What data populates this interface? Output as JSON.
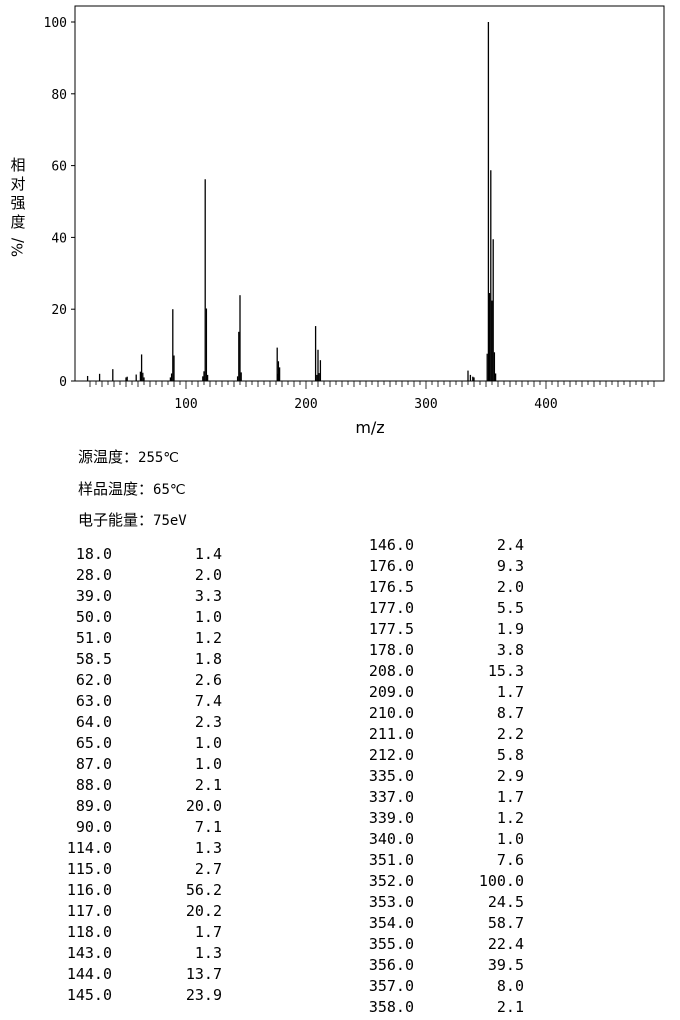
{
  "chart_data": {
    "type": "bar",
    "xlabel": "m/z",
    "ylabel": "相对强度/%",
    "xlim": [
      10,
      495
    ],
    "ylim": [
      0,
      104
    ],
    "x_ticks": [
      100,
      200,
      300,
      400
    ],
    "y_ticks": [
      0,
      20,
      40,
      60,
      80,
      100
    ],
    "peaks": [
      [
        18.0,
        1.4
      ],
      [
        28.0,
        2.0
      ],
      [
        39.0,
        3.3
      ],
      [
        50.0,
        1.0
      ],
      [
        51.0,
        1.2
      ],
      [
        58.5,
        1.8
      ],
      [
        62.0,
        2.6
      ],
      [
        63.0,
        7.4
      ],
      [
        64.0,
        2.3
      ],
      [
        65.0,
        1.0
      ],
      [
        87.0,
        1.0
      ],
      [
        88.0,
        2.1
      ],
      [
        89.0,
        20.0
      ],
      [
        90.0,
        7.1
      ],
      [
        114.0,
        1.3
      ],
      [
        115.0,
        2.7
      ],
      [
        116.0,
        56.2
      ],
      [
        117.0,
        20.2
      ],
      [
        118.0,
        1.7
      ],
      [
        143.0,
        1.3
      ],
      [
        144.0,
        13.7
      ],
      [
        145.0,
        23.9
      ],
      [
        146.0,
        2.4
      ],
      [
        176.0,
        9.3
      ],
      [
        176.5,
        2.0
      ],
      [
        177.0,
        5.5
      ],
      [
        177.5,
        1.9
      ],
      [
        178.0,
        3.8
      ],
      [
        208.0,
        15.3
      ],
      [
        209.0,
        1.7
      ],
      [
        210.0,
        8.7
      ],
      [
        211.0,
        2.2
      ],
      [
        212.0,
        5.8
      ],
      [
        335.0,
        2.9
      ],
      [
        337.0,
        1.7
      ],
      [
        339.0,
        1.2
      ],
      [
        340.0,
        1.0
      ],
      [
        351.0,
        7.6
      ],
      [
        352.0,
        100.0
      ],
      [
        353.0,
        24.5
      ],
      [
        354.0,
        58.7
      ],
      [
        355.0,
        22.4
      ],
      [
        356.0,
        39.5
      ],
      [
        357.0,
        8.0
      ],
      [
        358.0,
        2.1
      ]
    ]
  },
  "conditions": {
    "source_temp_label": "源温度：",
    "source_temp_value": "255℃",
    "sample_temp_label": "样品温度：",
    "sample_temp_value": "65℃",
    "energy_label": "电子能量：",
    "energy_value": "75eV"
  },
  "table_left": [
    [
      "18.0",
      "1.4"
    ],
    [
      "28.0",
      "2.0"
    ],
    [
      "39.0",
      "3.3"
    ],
    [
      "50.0",
      "1.0"
    ],
    [
      "51.0",
      "1.2"
    ],
    [
      "58.5",
      "1.8"
    ],
    [
      "62.0",
      "2.6"
    ],
    [
      "63.0",
      "7.4"
    ],
    [
      "64.0",
      "2.3"
    ],
    [
      "65.0",
      "1.0"
    ],
    [
      "87.0",
      "1.0"
    ],
    [
      "88.0",
      "2.1"
    ],
    [
      "89.0",
      "20.0"
    ],
    [
      "90.0",
      "7.1"
    ],
    [
      "114.0",
      "1.3"
    ],
    [
      "115.0",
      "2.7"
    ],
    [
      "116.0",
      "56.2"
    ],
    [
      "117.0",
      "20.2"
    ],
    [
      "118.0",
      "1.7"
    ],
    [
      "143.0",
      "1.3"
    ],
    [
      "144.0",
      "13.7"
    ],
    [
      "145.0",
      "23.9"
    ]
  ],
  "table_right": [
    [
      "146.0",
      "2.4"
    ],
    [
      "176.0",
      "9.3"
    ],
    [
      "176.5",
      "2.0"
    ],
    [
      "177.0",
      "5.5"
    ],
    [
      "177.5",
      "1.9"
    ],
    [
      "178.0",
      "3.8"
    ],
    [
      "208.0",
      "15.3"
    ],
    [
      "209.0",
      "1.7"
    ],
    [
      "210.0",
      "8.7"
    ],
    [
      "211.0",
      "2.2"
    ],
    [
      "212.0",
      "5.8"
    ],
    [
      "335.0",
      "2.9"
    ],
    [
      "337.0",
      "1.7"
    ],
    [
      "339.0",
      "1.2"
    ],
    [
      "340.0",
      "1.0"
    ],
    [
      "351.0",
      "7.6"
    ],
    [
      "352.0",
      "100.0"
    ],
    [
      "353.0",
      "24.5"
    ],
    [
      "354.0",
      "58.7"
    ],
    [
      "355.0",
      "22.4"
    ],
    [
      "356.0",
      "39.5"
    ],
    [
      "357.0",
      "8.0"
    ],
    [
      "358.0",
      "2.1"
    ]
  ]
}
